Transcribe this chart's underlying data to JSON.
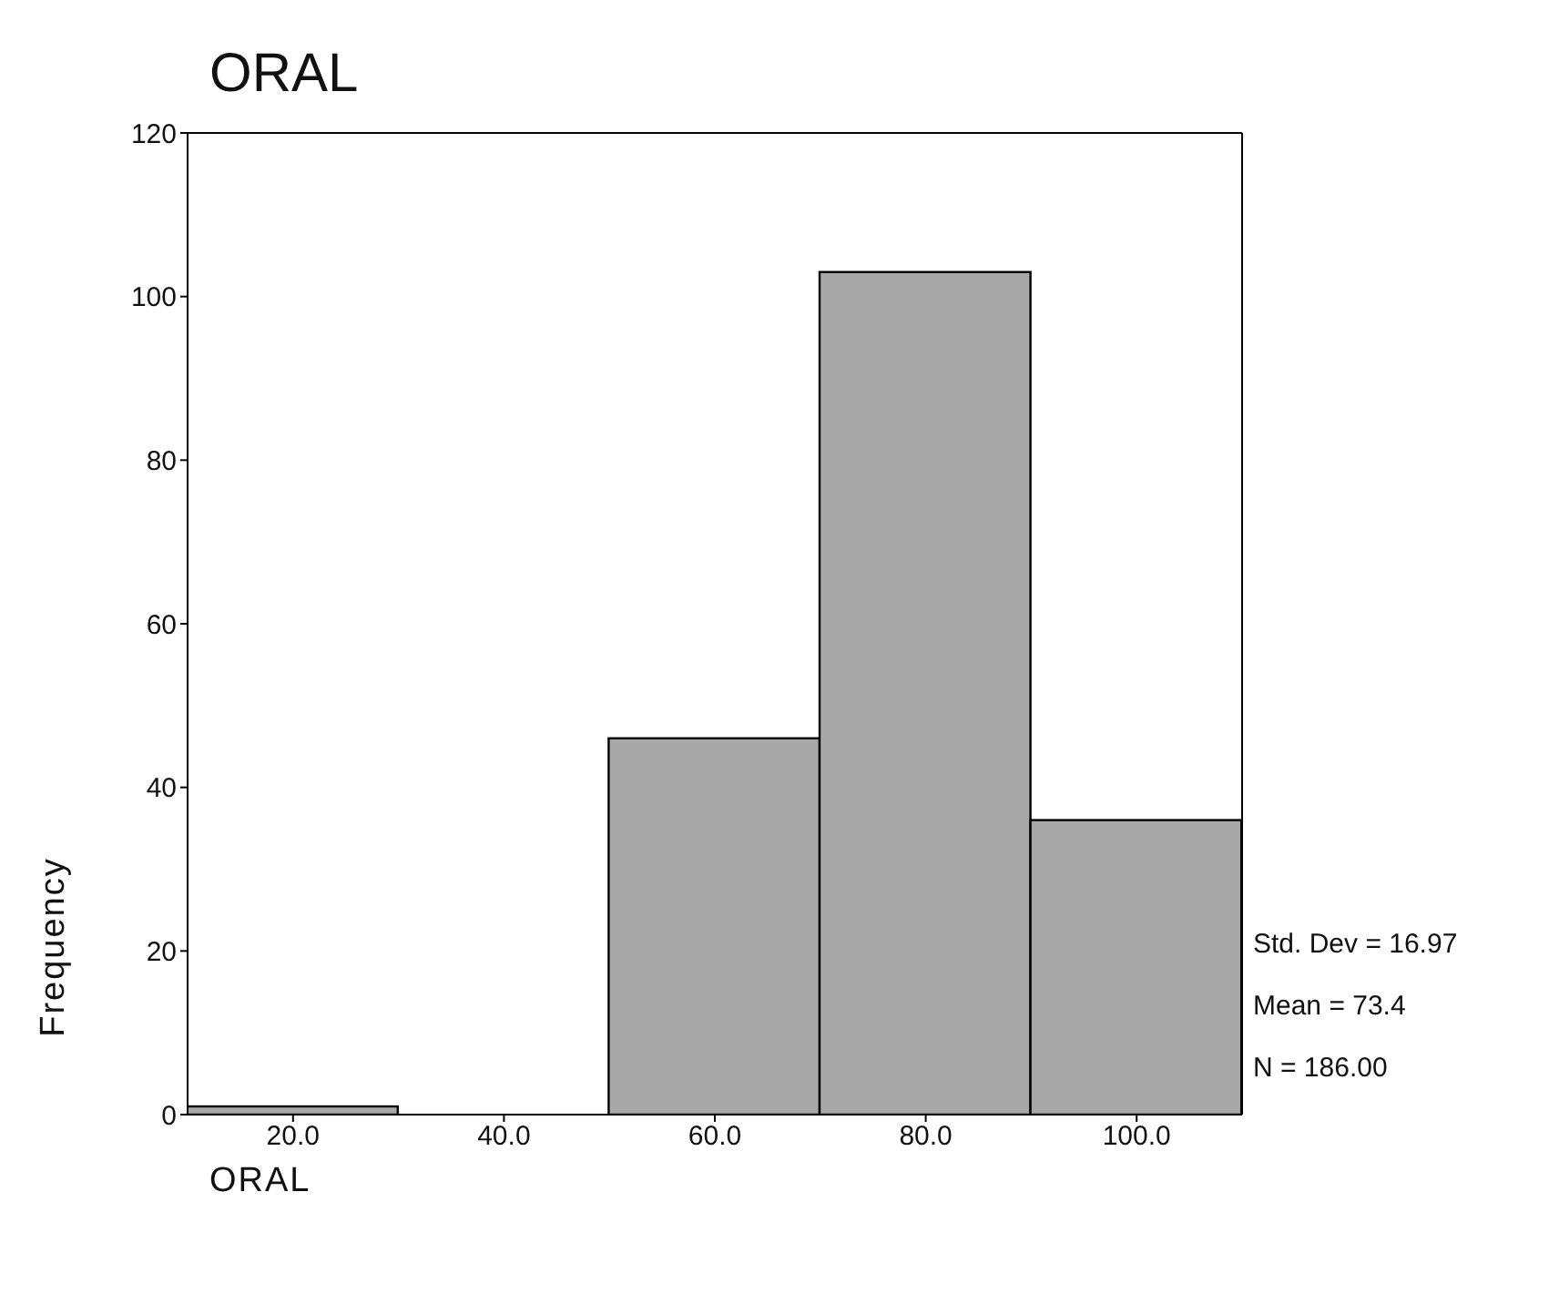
{
  "chart_data": {
    "type": "histogram",
    "title": "ORAL",
    "xlabel": "ORAL",
    "ylabel": "Frequency",
    "bins": [
      10,
      30,
      50,
      70,
      90,
      110
    ],
    "values": [
      1,
      0,
      46,
      103,
      36
    ],
    "color": "#a8a8a8",
    "xlim": [
      10,
      110
    ],
    "xticks": [
      {
        "value": 20,
        "label": "20.0"
      },
      {
        "value": 40,
        "label": "40.0"
      },
      {
        "value": 60,
        "label": "60.0"
      },
      {
        "value": 80,
        "label": "80.0"
      },
      {
        "value": 100,
        "label": "100.0"
      }
    ],
    "ylim": [
      0,
      120
    ],
    "yticks": [
      0,
      20,
      40,
      60,
      80,
      100,
      120
    ],
    "annotations": [
      "Std. Dev = 16.97",
      "Mean = 73.4",
      "N = 186.00"
    ]
  }
}
